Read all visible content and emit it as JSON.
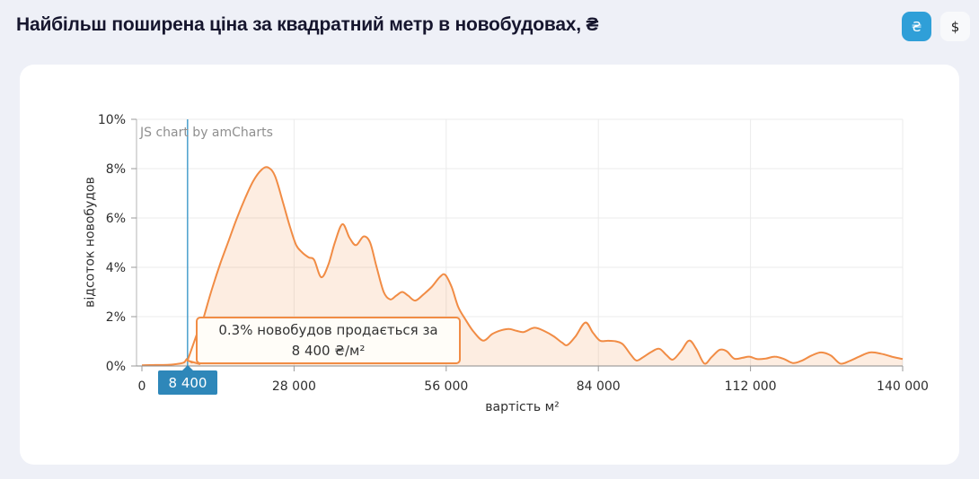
{
  "header": {
    "title": "Найбільш поширена ціна за квадратний метр в новобудовах, ₴",
    "currency_toggle": {
      "uah_label": "₴",
      "usd_label": "$",
      "active": "uah",
      "active_color": "#2f9fd8"
    }
  },
  "watermark": "JS chart by amCharts",
  "tooltip": {
    "line1": "0.3% новобудов продається за",
    "line2": "8 400 ₴/м²"
  },
  "cursor": {
    "x_value": 8400,
    "label": "8 400",
    "line_color": "#4aa0cc",
    "badge_color": "#2e87b9"
  },
  "chart_data": {
    "type": "area",
    "title": "Найбільш поширена ціна за квадратний метр в новобудовах, ₴",
    "xlabel": "вартість м²",
    "ylabel": "відсоток новобудов",
    "xlim": [
      0,
      140000
    ],
    "ylim": [
      0,
      10
    ],
    "grid": true,
    "x_tick_values": [
      0,
      28000,
      56000,
      84000,
      112000,
      140000
    ],
    "x_tick_labels": [
      "0",
      "28 000",
      "56 000",
      "84 000",
      "112 000",
      "140 000"
    ],
    "y_tick_values": [
      0,
      2,
      4,
      6,
      8,
      10
    ],
    "y_tick_labels": [
      "0%",
      "2%",
      "4%",
      "6%",
      "8%",
      "10%"
    ],
    "line_color": "#f18c45",
    "fill_color": "rgba(241,140,69,0.16)",
    "highlight_point": {
      "x": 8400,
      "y": 0.3
    },
    "series": [
      {
        "name": "відсоток новобудов",
        "points": [
          [
            0,
            0.03
          ],
          [
            2500,
            0.04
          ],
          [
            5000,
            0.05
          ],
          [
            7000,
            0.1
          ],
          [
            7800,
            0.15
          ],
          [
            8400,
            0.3
          ],
          [
            9300,
            0.15
          ],
          [
            10000,
            0.6
          ],
          [
            10800,
            1.5
          ],
          [
            11800,
            2.3
          ],
          [
            13000,
            3.2
          ],
          [
            14500,
            4.2
          ],
          [
            16000,
            5.1
          ],
          [
            17500,
            6.0
          ],
          [
            19000,
            6.8
          ],
          [
            20500,
            7.5
          ],
          [
            22000,
            7.95
          ],
          [
            23200,
            8.05
          ],
          [
            24500,
            7.7
          ],
          [
            26000,
            6.6
          ],
          [
            27300,
            5.6
          ],
          [
            28400,
            4.9
          ],
          [
            29500,
            4.6
          ],
          [
            30700,
            4.4
          ],
          [
            31700,
            4.3
          ],
          [
            33000,
            3.6
          ],
          [
            34300,
            4.1
          ],
          [
            35500,
            5.0
          ],
          [
            36900,
            5.75
          ],
          [
            38200,
            5.2
          ],
          [
            39400,
            4.9
          ],
          [
            40800,
            5.25
          ],
          [
            42000,
            5.0
          ],
          [
            43200,
            4.0
          ],
          [
            44500,
            3.0
          ],
          [
            45700,
            2.7
          ],
          [
            46800,
            2.85
          ],
          [
            47900,
            3.0
          ],
          [
            49000,
            2.85
          ],
          [
            50300,
            2.65
          ],
          [
            51800,
            2.9
          ],
          [
            53300,
            3.2
          ],
          [
            54800,
            3.6
          ],
          [
            55800,
            3.7
          ],
          [
            57000,
            3.2
          ],
          [
            58200,
            2.4
          ],
          [
            59500,
            1.9
          ],
          [
            61000,
            1.4
          ],
          [
            62800,
            1.03
          ],
          [
            64500,
            1.3
          ],
          [
            66200,
            1.45
          ],
          [
            67600,
            1.5
          ],
          [
            69000,
            1.42
          ],
          [
            70300,
            1.38
          ],
          [
            72200,
            1.55
          ],
          [
            74000,
            1.42
          ],
          [
            75800,
            1.2
          ],
          [
            77300,
            0.95
          ],
          [
            78300,
            0.85
          ],
          [
            79800,
            1.2
          ],
          [
            81600,
            1.76
          ],
          [
            83000,
            1.35
          ],
          [
            84300,
            1.03
          ],
          [
            85800,
            1.02
          ],
          [
            87200,
            1.0
          ],
          [
            88500,
            0.88
          ],
          [
            90000,
            0.45
          ],
          [
            91000,
            0.22
          ],
          [
            92200,
            0.35
          ],
          [
            93800,
            0.58
          ],
          [
            95200,
            0.7
          ],
          [
            96500,
            0.45
          ],
          [
            97700,
            0.26
          ],
          [
            99200,
            0.6
          ],
          [
            100700,
            1.03
          ],
          [
            102000,
            0.7
          ],
          [
            103500,
            0.1
          ],
          [
            104800,
            0.35
          ],
          [
            106300,
            0.65
          ],
          [
            107600,
            0.6
          ],
          [
            109000,
            0.3
          ],
          [
            110500,
            0.33
          ],
          [
            111800,
            0.38
          ],
          [
            113200,
            0.28
          ],
          [
            114800,
            0.3
          ],
          [
            116500,
            0.38
          ],
          [
            118200,
            0.28
          ],
          [
            119800,
            0.12
          ],
          [
            121500,
            0.22
          ],
          [
            123200,
            0.42
          ],
          [
            125000,
            0.55
          ],
          [
            126800,
            0.42
          ],
          [
            128500,
            0.1
          ],
          [
            130200,
            0.2
          ],
          [
            132000,
            0.38
          ],
          [
            134000,
            0.55
          ],
          [
            136000,
            0.5
          ],
          [
            138000,
            0.38
          ],
          [
            140000,
            0.28
          ]
        ]
      }
    ]
  }
}
